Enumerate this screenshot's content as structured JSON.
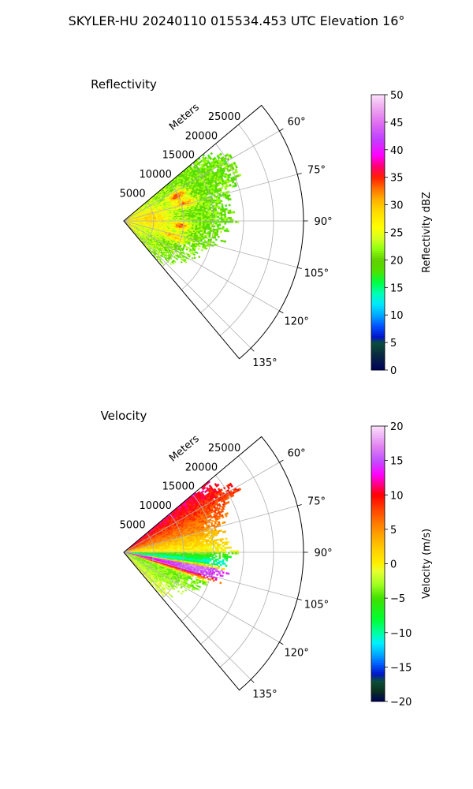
{
  "suptitle": "SKYLER-HU  20240110  015534.453 UTC Elevation 16°",
  "chart_data": [
    {
      "type": "heatmap",
      "title": "Reflectivity",
      "projection": "polar-sector",
      "range_label": "Meters",
      "range_ticks": [
        5000,
        10000,
        15000,
        20000,
        25000
      ],
      "range_tick_labels": [
        "5000",
        "10000",
        "15000",
        "20000",
        "25000"
      ],
      "rmax": 30000,
      "azimuth_range_deg": [
        50,
        140
      ],
      "azimuth_ticks": [
        60,
        75,
        90,
        105,
        120,
        135
      ],
      "azimuth_tick_labels": [
        "60°",
        "75°",
        "90°",
        "105°",
        "120°",
        "135°"
      ],
      "grid": true,
      "data_range_m": [
        0,
        21000
      ],
      "colorbar": {
        "label": "Reflectivity dBZ",
        "vmin": 0,
        "vmax": 50,
        "ticks": [
          0,
          5,
          10,
          15,
          20,
          25,
          30,
          35,
          40,
          45,
          50
        ],
        "tick_labels": [
          "0",
          "5",
          "10",
          "15",
          "20",
          "25",
          "30",
          "35",
          "40",
          "45",
          "50"
        ]
      },
      "field_description": "values mostly 17-25 dBZ (green-yellow); 25-32 near radar; cores up to ~38 at about 10000 m, azimuth 65°, 75°, 95°"
    },
    {
      "type": "heatmap",
      "title": "Velocity",
      "projection": "polar-sector",
      "range_label": "Meters",
      "range_ticks": [
        5000,
        10000,
        15000,
        20000,
        25000
      ],
      "range_tick_labels": [
        "5000",
        "10000",
        "15000",
        "20000",
        "25000"
      ],
      "rmax": 30000,
      "azimuth_range_deg": [
        50,
        140
      ],
      "azimuth_ticks": [
        60,
        75,
        90,
        105,
        120,
        135
      ],
      "azimuth_tick_labels": [
        "60°",
        "75°",
        "90°",
        "105°",
        "120°",
        "135°"
      ],
      "grid": true,
      "data_range_m": [
        0,
        22000
      ],
      "colorbar": {
        "label": "Velocity (m/s)",
        "vmin": -20,
        "vmax": 20,
        "ticks": [
          -20,
          -15,
          -10,
          -5,
          0,
          5,
          10,
          15,
          20
        ],
        "tick_labels": [
          "−20",
          "−15",
          "−10",
          "−5",
          "0",
          "5",
          "10",
          "15",
          "20"
        ]
      },
      "field_description": "about +10 m/s (red) at azimuth 55-75°, ~0 to +3 (yellow) at 75-90°, -10 (cyan/green) band near 95-100° close to radar, +12 to +16 (magenta) at 100-105°, -5 (green) at 110-125°"
    }
  ]
}
